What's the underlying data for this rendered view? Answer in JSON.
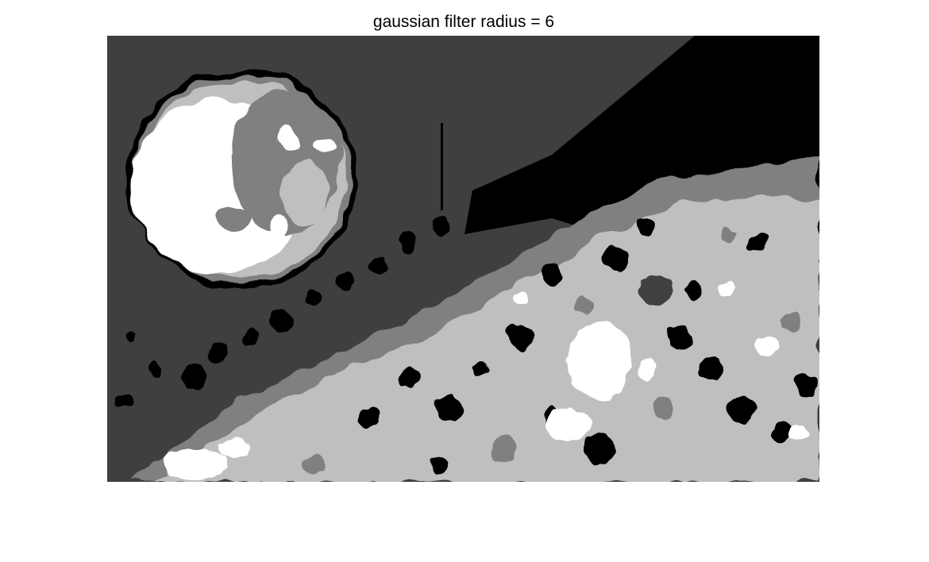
{
  "figure": {
    "title": "gaussian filter radius = 6"
  },
  "image": {
    "kind": "quantized grayscale image",
    "gray_levels": [
      "#000000",
      "#3f3f3f",
      "#808080",
      "#bfbfbf",
      "#ffffff"
    ]
  }
}
